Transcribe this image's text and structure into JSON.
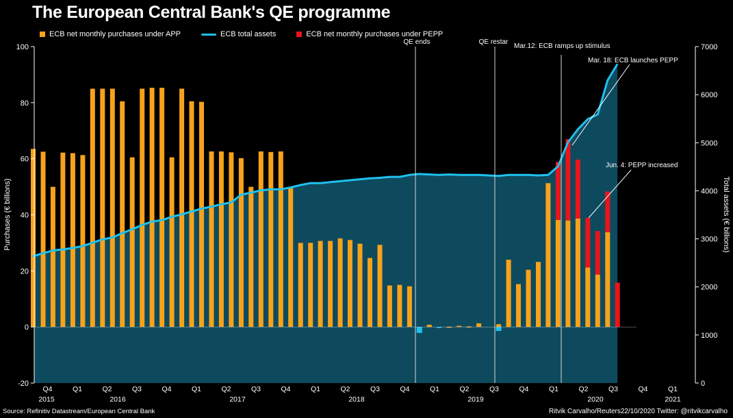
{
  "title": "The European Central Bank's QE programme",
  "legend": {
    "app": "ECB net monthly purchases under APP",
    "assets": "ECB total assets",
    "pepp": "ECB net monthly purchases under PEPP"
  },
  "colors": {
    "app": "#F7A21B",
    "assets": "#1FC1EE",
    "pepp": "#E8151B",
    "area": "#0E4A5E",
    "bg": "#000000"
  },
  "source": "Source: Refinitiv Datastream/European Central Bank",
  "credit": "Ritvik Carvalho/Reuters22/10/2020 Twitter: @ritvikcarvalho",
  "chart_data": {
    "type": "bar",
    "ylabel_left": "Purchases (€ billions)",
    "ylabel_right": "Total assets (€ billions)",
    "ylim_left": [
      -20,
      100
    ],
    "ylim_right": [
      0,
      7000
    ],
    "yticks_left": [
      "100",
      "80",
      "60",
      "40",
      "20",
      "0",
      "-20"
    ],
    "yticks_right": [
      "7000",
      "6000",
      "5000",
      "4000",
      "3000",
      "2000",
      "1000",
      "0"
    ],
    "quarter_labels": [
      "Q4",
      "Q1",
      "Q2",
      "Q3",
      "Q4",
      "Q1",
      "Q2",
      "Q3",
      "Q4",
      "Q1",
      "Q2",
      "Q3",
      "Q4",
      "Q1",
      "Q2",
      "Q3",
      "Q4",
      "Q1",
      "Q2",
      "Q3",
      "Q4",
      "Q1"
    ],
    "year_labels": [
      "2015",
      "2016",
      "2017",
      "2018",
      "2019",
      "2020",
      "2021"
    ],
    "months_start": "Oct 2015",
    "app_purchases": [
      63.5,
      62.5,
      50,
      62.2,
      62,
      61.3,
      85,
      85,
      85,
      80.5,
      60.5,
      85,
      85.3,
      85.3,
      60.5,
      85,
      80.5,
      80.3,
      62.6,
      62.6,
      62.3,
      60.2,
      50,
      62.6,
      62.4,
      62.6,
      50,
      30,
      30,
      30.7,
      30.7,
      31.6,
      31,
      29.7,
      24.6,
      29.3,
      14.8,
      15,
      14.5,
      -1.4,
      0.8,
      -0.2,
      0.1,
      0.4,
      0.2,
      1.3,
      0,
      1,
      24,
      15.3,
      20.4,
      23.2,
      51.3,
      38.2,
      38,
      38.7,
      21.2,
      18.7,
      33.8,
      0
    ],
    "pepp_purchases": [
      0,
      0,
      0,
      0,
      0,
      0,
      0,
      0,
      0,
      0,
      0,
      0,
      0,
      0,
      0,
      0,
      0,
      0,
      0,
      0,
      0,
      0,
      0,
      0,
      0,
      0,
      0,
      0,
      0,
      0,
      0,
      0,
      0,
      0,
      0,
      0,
      0,
      0,
      0,
      0,
      0,
      0,
      0,
      0,
      0,
      0,
      0,
      0,
      0,
      0,
      0,
      0,
      0,
      20.7,
      29,
      21,
      17.7,
      15.5,
      14.5,
      15.8
    ],
    "total_assets": [
      2640,
      2700,
      2760,
      2780,
      2810,
      2850,
      2920,
      2990,
      3030,
      3120,
      3200,
      3290,
      3360,
      3390,
      3460,
      3510,
      3570,
      3630,
      3670,
      3720,
      3760,
      3920,
      3960,
      4010,
      4030,
      4030,
      4070,
      4120,
      4160,
      4160,
      4180,
      4200,
      4220,
      4240,
      4260,
      4270,
      4290,
      4290,
      4330,
      4350,
      4340,
      4330,
      4340,
      4330,
      4330,
      4330,
      4320,
      4310,
      4330,
      4330,
      4330,
      4320,
      4330,
      4510,
      5010,
      5280,
      5490,
      5590,
      6300,
      6640
    ],
    "annotations": [
      "QE ends",
      "QE restar",
      "Mar.12: ECB ramps up stimulus",
      "Mar. 18: ECB launches PEPP",
      "Jun. 4: PEPP increased"
    ],
    "grid": false,
    "legend_position": "top-left"
  }
}
